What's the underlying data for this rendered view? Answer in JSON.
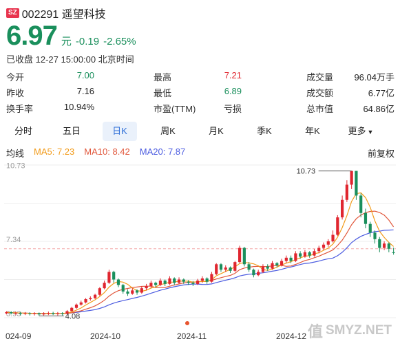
{
  "header": {
    "exchange": "SZ",
    "code_name": "002291 遥望科技"
  },
  "quote": {
    "price": "6.97",
    "unit": "元",
    "change": "-0.19",
    "change_pct": "-2.65%",
    "timestamp": "已收盘 12-27 15:00:00 北京时间"
  },
  "stats": [
    [
      {
        "label": "今开",
        "value": "7.00",
        "color": "green"
      },
      {
        "label": "最高",
        "value": "7.21",
        "color": "red"
      },
      {
        "label": "成交量",
        "value": "96.04万手",
        "color": "dark"
      }
    ],
    [
      {
        "label": "昨收",
        "value": "7.16",
        "color": "dark"
      },
      {
        "label": "最低",
        "value": "6.89",
        "color": "green"
      },
      {
        "label": "成交额",
        "value": "6.77亿",
        "color": "dark"
      }
    ],
    [
      {
        "label": "换手率",
        "value": "10.94%",
        "color": "dark"
      },
      {
        "label": "市盈(TTM)",
        "value": "亏损",
        "color": "dark"
      },
      {
        "label": "总市值",
        "value": "64.86亿",
        "color": "dark"
      }
    ]
  ],
  "tabs": [
    "分时",
    "五日",
    "日K",
    "周K",
    "月K",
    "季K",
    "年K",
    "更多"
  ],
  "active_tab": "日K",
  "ma": {
    "label": "均线",
    "ma5": "MA5: 7.23",
    "ma10": "MA10: 8.42",
    "ma20": "MA20: 7.87",
    "adjust": "前复权"
  },
  "watermark": "SMYZ.NET",
  "colors": {
    "up": "#e0262f",
    "down": "#1a8f5c",
    "ma5": "#f29b1a",
    "ma10": "#e1573b",
    "ma20": "#4b5be0",
    "ref_line": "#f3a6a6"
  },
  "chart_data": {
    "type": "candlestick",
    "ylim": [
      4.0,
      11.0
    ],
    "y_ticks": [
      "10.73",
      "7.34",
      "3.93"
    ],
    "x_ticks": [
      "024-09",
      "2024-10",
      "2024-11",
      "2024-12"
    ],
    "reference_line": 7.16,
    "annotations": {
      "high": "10.73",
      "low": "4.08"
    },
    "candles": [
      [
        4.2,
        4.25,
        4.15,
        4.3
      ],
      [
        4.25,
        4.2,
        4.15,
        4.3
      ],
      [
        4.2,
        4.22,
        4.12,
        4.28
      ],
      [
        4.22,
        4.18,
        4.1,
        4.27
      ],
      [
        4.18,
        4.2,
        4.12,
        4.26
      ],
      [
        4.2,
        4.17,
        4.1,
        4.25
      ],
      [
        4.17,
        4.2,
        4.1,
        4.25
      ],
      [
        4.2,
        4.15,
        4.08,
        4.24
      ],
      [
        4.15,
        4.19,
        4.1,
        4.25
      ],
      [
        4.19,
        4.22,
        4.12,
        4.28
      ],
      [
        4.22,
        4.18,
        4.12,
        4.27
      ],
      [
        4.18,
        4.2,
        4.1,
        4.26
      ],
      [
        4.2,
        4.18,
        4.1,
        4.25
      ],
      [
        4.18,
        4.3,
        4.15,
        4.35
      ],
      [
        4.3,
        4.45,
        4.28,
        4.5
      ],
      [
        4.45,
        4.6,
        4.4,
        4.65
      ],
      [
        4.6,
        4.7,
        4.55,
        4.78
      ],
      [
        4.7,
        4.85,
        4.65,
        4.9
      ],
      [
        4.85,
        4.9,
        4.78,
        4.98
      ],
      [
        4.9,
        5.05,
        4.85,
        5.1
      ],
      [
        5.05,
        5.35,
        5.0,
        5.4
      ],
      [
        5.35,
        5.6,
        5.3,
        5.7
      ],
      [
        5.6,
        6.1,
        5.55,
        6.2
      ],
      [
        6.1,
        5.75,
        5.6,
        6.15
      ],
      [
        5.75,
        5.5,
        5.4,
        5.8
      ],
      [
        5.5,
        5.2,
        5.1,
        5.55
      ],
      [
        5.2,
        5.1,
        5.0,
        5.3
      ],
      [
        5.1,
        5.25,
        5.05,
        5.35
      ],
      [
        5.25,
        5.15,
        5.05,
        5.3
      ],
      [
        5.15,
        5.35,
        5.1,
        5.45
      ],
      [
        5.35,
        5.45,
        5.25,
        5.55
      ],
      [
        5.45,
        5.6,
        5.35,
        5.7
      ],
      [
        5.6,
        5.5,
        5.4,
        5.65
      ],
      [
        5.5,
        5.7,
        5.45,
        5.8
      ],
      [
        5.7,
        5.55,
        5.45,
        5.75
      ],
      [
        5.55,
        5.8,
        5.5,
        5.9
      ],
      [
        5.8,
        5.6,
        5.5,
        5.85
      ],
      [
        5.6,
        5.75,
        5.55,
        5.85
      ],
      [
        5.75,
        5.65,
        5.55,
        5.8
      ],
      [
        5.65,
        5.6,
        5.5,
        5.72
      ],
      [
        5.6,
        5.55,
        5.45,
        5.68
      ],
      [
        5.55,
        5.7,
        5.5,
        5.78
      ],
      [
        5.7,
        5.8,
        5.6,
        5.9
      ],
      [
        5.8,
        5.65,
        5.55,
        5.85
      ],
      [
        5.65,
        6.0,
        5.6,
        6.1
      ],
      [
        6.0,
        6.45,
        5.95,
        6.5
      ],
      [
        6.45,
        6.2,
        6.1,
        6.5
      ],
      [
        6.2,
        6.3,
        6.1,
        6.4
      ],
      [
        6.3,
        6.15,
        6.05,
        6.35
      ],
      [
        6.15,
        6.55,
        6.1,
        6.6
      ],
      [
        6.55,
        7.2,
        6.5,
        7.3
      ],
      [
        7.2,
        6.45,
        6.35,
        7.25
      ],
      [
        6.45,
        6.2,
        6.1,
        6.55
      ],
      [
        6.2,
        5.95,
        5.85,
        6.25
      ],
      [
        5.95,
        6.1,
        5.9,
        6.2
      ],
      [
        6.1,
        6.35,
        6.05,
        6.45
      ],
      [
        6.35,
        6.25,
        6.15,
        6.45
      ],
      [
        6.25,
        6.5,
        6.2,
        6.6
      ],
      [
        6.5,
        6.4,
        6.3,
        6.55
      ],
      [
        6.4,
        6.6,
        6.35,
        6.7
      ],
      [
        6.6,
        6.75,
        6.5,
        6.85
      ],
      [
        6.75,
        6.6,
        6.5,
        6.85
      ],
      [
        6.6,
        6.95,
        6.55,
        7.05
      ],
      [
        6.95,
        6.8,
        6.7,
        7.05
      ],
      [
        6.8,
        7.0,
        6.75,
        7.1
      ],
      [
        7.0,
        6.85,
        6.75,
        7.05
      ],
      [
        6.85,
        7.05,
        6.8,
        7.15
      ],
      [
        7.05,
        7.2,
        6.95,
        7.3
      ],
      [
        7.2,
        7.35,
        7.1,
        7.45
      ],
      [
        7.35,
        7.5,
        7.25,
        7.6
      ],
      [
        7.5,
        7.8,
        7.45,
        8.0
      ],
      [
        7.8,
        8.6,
        7.75,
        8.7
      ],
      [
        8.6,
        9.4,
        8.5,
        9.6
      ],
      [
        9.4,
        10.1,
        9.3,
        10.3
      ],
      [
        10.1,
        10.73,
        9.9,
        10.73
      ],
      [
        10.73,
        9.6,
        9.4,
        10.73
      ],
      [
        9.6,
        8.8,
        8.6,
        9.7
      ],
      [
        8.8,
        8.3,
        8.1,
        9.0
      ],
      [
        8.3,
        7.9,
        7.7,
        8.4
      ],
      [
        7.9,
        7.6,
        7.4,
        8.0
      ],
      [
        7.6,
        7.2,
        7.0,
        7.7
      ],
      [
        7.2,
        7.4,
        7.1,
        7.5
      ],
      [
        7.4,
        7.16,
        7.0,
        7.45
      ],
      [
        7.0,
        6.97,
        6.89,
        7.21
      ]
    ]
  }
}
